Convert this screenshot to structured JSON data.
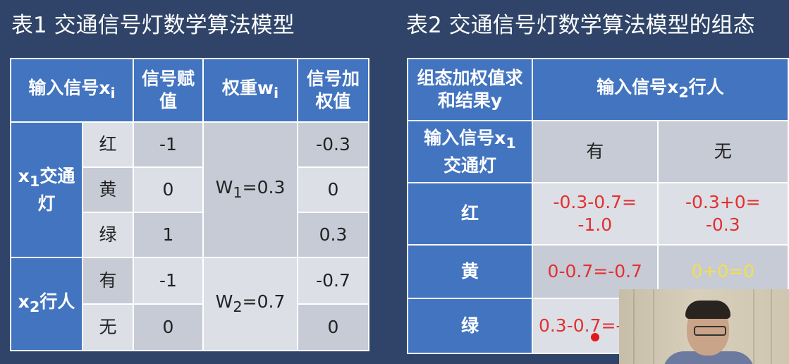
{
  "titles": {
    "table1": "表1 交通信号灯数学算法模型",
    "table2": "表2 交通信号灯数学算法模型的组态"
  },
  "table1": {
    "headers": {
      "input": "输入信号x",
      "input_sub": "i",
      "value": "信号赋值",
      "weight": "权重w",
      "weight_sub": "i",
      "weighted": "信号加权值"
    },
    "group1": {
      "label": "x",
      "label_sub": "1",
      "label_rest": "交通灯",
      "weight": "W",
      "weight_sub": "1",
      "weight_rest": "=0.3"
    },
    "group2": {
      "label": "x",
      "label_sub": "2",
      "label_rest": "行人",
      "weight": "W",
      "weight_sub": "2",
      "weight_rest": "=0.7"
    },
    "rows": [
      {
        "state": "红",
        "value": "-1",
        "weighted": "-0.3"
      },
      {
        "state": "黄",
        "value": "0",
        "weighted": "0"
      },
      {
        "state": "绿",
        "value": "1",
        "weighted": "0.3"
      },
      {
        "state": "有",
        "value": "-1",
        "weighted": "-0.7"
      },
      {
        "state": "无",
        "value": "0",
        "weighted": "0"
      }
    ]
  },
  "table2": {
    "corner": "组态加权值求和结果y",
    "col_header": "输入信号x",
    "col_header_sub": "2",
    "col_header_rest": "行人",
    "row_header": "输入信号x",
    "row_header_sub": "1",
    "row_header_rest": "交通灯",
    "cols": [
      "有",
      "无"
    ],
    "rows": [
      {
        "label": "红",
        "c1": "-0.3-0.7=",
        "c1b": "-1.0",
        "c2": "-0.3+0=",
        "c2b": "-0.3"
      },
      {
        "label": "黄",
        "c1": "0-0.7=-0.7",
        "c2": "0+0=0"
      },
      {
        "label": "绿",
        "c1": "0.3-0.7=-"
      }
    ]
  },
  "colors": {
    "header": "#4374c0",
    "result_red": "#e23030",
    "result_yellow": "#f2e04a",
    "background": "#2f4468"
  }
}
